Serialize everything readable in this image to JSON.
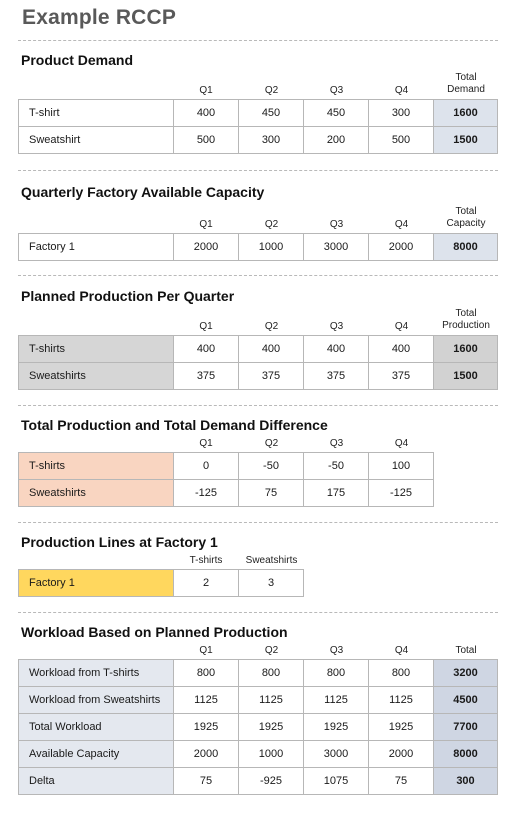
{
  "title": "Example RCCP",
  "quarters": [
    "Q1",
    "Q2",
    "Q3",
    "Q4"
  ],
  "product_demand": {
    "title": "Product Demand",
    "total_header": [
      "Total",
      "Demand"
    ],
    "rows": [
      {
        "label": "T-shirt",
        "values": [
          "400",
          "450",
          "450",
          "300"
        ],
        "total": "1600"
      },
      {
        "label": "Sweatshirt",
        "values": [
          "500",
          "300",
          "200",
          "500"
        ],
        "total": "1500"
      }
    ]
  },
  "capacity": {
    "title": "Quarterly Factory Available Capacity",
    "total_header": [
      "Total",
      "Capacity"
    ],
    "rows": [
      {
        "label": "Factory 1",
        "values": [
          "2000",
          "1000",
          "3000",
          "2000"
        ],
        "total": "8000"
      }
    ]
  },
  "planned_production": {
    "title": "Planned Production Per Quarter",
    "total_header": [
      "Total",
      "Production"
    ],
    "rows": [
      {
        "label": "T-shirts",
        "values": [
          "400",
          "400",
          "400",
          "400"
        ],
        "total": "1600"
      },
      {
        "label": "Sweatshirts",
        "values": [
          "375",
          "375",
          "375",
          "375"
        ],
        "total": "1500"
      }
    ]
  },
  "difference": {
    "title": "Total Production and Total Demand Difference",
    "rows": [
      {
        "label": "T-shirts",
        "values": [
          "0",
          "-50",
          "-50",
          "100"
        ]
      },
      {
        "label": "Sweatshirts",
        "values": [
          "-125",
          "75",
          "175",
          "-125"
        ]
      }
    ]
  },
  "lines": {
    "title": "Production Lines at Factory 1",
    "headers": [
      "T-shirts",
      "Sweatshirts"
    ],
    "rows": [
      {
        "label": "Factory 1",
        "values": [
          "2",
          "3"
        ]
      }
    ]
  },
  "workload": {
    "title": "Workload Based on Planned Production",
    "total_header": "Total",
    "rows": [
      {
        "label": "Workload from T-shirts",
        "values": [
          "800",
          "800",
          "800",
          "800"
        ],
        "total": "3200"
      },
      {
        "label": "Workload from Sweatshirts",
        "values": [
          "1125",
          "1125",
          "1125",
          "1125"
        ],
        "total": "4500"
      },
      {
        "label": "Total Workload",
        "values": [
          "1925",
          "1925",
          "1925",
          "1925"
        ],
        "total": "7700"
      },
      {
        "label": "Available Capacity",
        "values": [
          "2000",
          "1000",
          "3000",
          "2000"
        ],
        "total": "8000"
      },
      {
        "label": "Delta",
        "values": [
          "75",
          "-925",
          "1075",
          "75"
        ],
        "total": "300"
      }
    ]
  }
}
